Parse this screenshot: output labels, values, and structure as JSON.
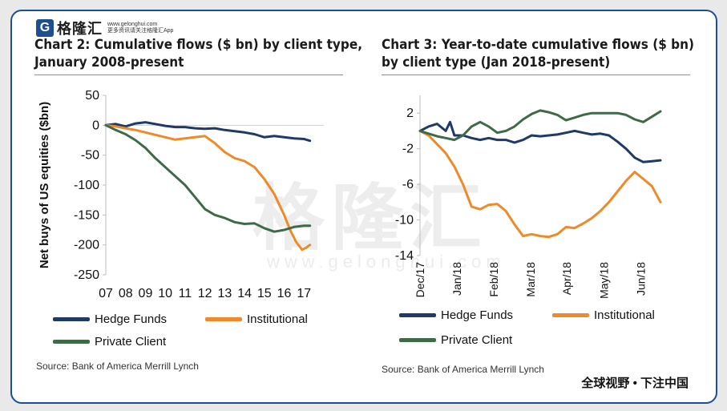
{
  "brand": {
    "badge": "G",
    "name": "格隆汇",
    "sub_line1": "www.gelonghui.com",
    "sub_line2": "更多资讯请关注格隆汇App"
  },
  "watermark": {
    "text": "格隆汇",
    "sub": "www.gelonghui.com"
  },
  "footer": {
    "slogan": "全球视野 • 下注中国"
  },
  "colors": {
    "hedge": "#1f3a66",
    "institutional": "#ee8a2a",
    "private": "#3f6a4a",
    "border": "#1d4f91"
  },
  "chart_data": [
    {
      "type": "line",
      "title_line1": "Chart 2: Cumulative flows ($ bn) by client type,",
      "title_line2": "January 2008-present",
      "ylabel": "Net buys of US equities ($bn)",
      "xlabel": "",
      "ylim": [
        -250,
        50
      ],
      "yticks": [
        "50",
        "0",
        "-50",
        "-100",
        "-150",
        "-200",
        "-250"
      ],
      "ytick_values": [
        50,
        0,
        -50,
        -100,
        -150,
        -200,
        -250
      ],
      "xlim": [
        7,
        18
      ],
      "xticks": [
        "07",
        "08",
        "09",
        "10",
        "11",
        "12",
        "13",
        "14",
        "15",
        "16",
        "17"
      ],
      "xtick_values": [
        7,
        8,
        9,
        10,
        11,
        12,
        13,
        14,
        15,
        16,
        17
      ],
      "series": [
        {
          "name": "Hedge Funds",
          "color_key": "hedge",
          "x": [
            7,
            7.5,
            8,
            8.5,
            9,
            9.5,
            10,
            10.5,
            11,
            11.5,
            12,
            12.5,
            13,
            13.5,
            14,
            14.5,
            15,
            15.5,
            16,
            16.5,
            17,
            17.3
          ],
          "y": [
            0,
            2,
            -2,
            3,
            5,
            2,
            -1,
            -3,
            -3,
            -5,
            -6,
            -5,
            -8,
            -10,
            -12,
            -15,
            -20,
            -18,
            -20,
            -22,
            -23,
            -26
          ]
        },
        {
          "name": "Institutional",
          "color_key": "institutional",
          "x": [
            7,
            7.5,
            8,
            8.5,
            9,
            9.5,
            10,
            10.5,
            11,
            11.5,
            12,
            12.5,
            13,
            13.5,
            14,
            14.5,
            15,
            15.5,
            16,
            16.3,
            16.6,
            16.9,
            17.1,
            17.3
          ],
          "y": [
            0,
            -2,
            -5,
            -8,
            -12,
            -16,
            -20,
            -24,
            -22,
            -20,
            -18,
            -30,
            -45,
            -55,
            -60,
            -70,
            -90,
            -115,
            -150,
            -175,
            -195,
            -208,
            -205,
            -200
          ]
        },
        {
          "name": "Private Client",
          "color_key": "private",
          "x": [
            7,
            7.5,
            8,
            8.5,
            9,
            9.5,
            10,
            10.5,
            11,
            11.5,
            12,
            12.5,
            13,
            13.5,
            14,
            14.5,
            15,
            15.5,
            16,
            16.5,
            17,
            17.3
          ],
          "y": [
            0,
            -8,
            -15,
            -25,
            -38,
            -55,
            -70,
            -85,
            -100,
            -120,
            -140,
            -150,
            -155,
            -162,
            -165,
            -164,
            -172,
            -178,
            -175,
            -170,
            -168,
            -168
          ]
        }
      ],
      "legend": [
        "Hedge Funds",
        "Institutional",
        "Private Client"
      ],
      "source": "Source:  Bank of America Merrill Lynch"
    },
    {
      "type": "line",
      "title_line1": "Chart 3: Year-to-date cumulative flows ($ bn)",
      "title_line2": "by client type (Jan 2018-present)",
      "ylabel": "",
      "xlabel": "",
      "ylim": [
        -14,
        4
      ],
      "yticks": [
        "2",
        "-2",
        "-6",
        "-10",
        "-14"
      ],
      "ytick_values": [
        2,
        -2,
        -6,
        -10,
        -14
      ],
      "xlim": [
        0,
        28
      ],
      "xticks": [
        "Dec/17",
        "Jan/18",
        "Feb/18",
        "Mar/18",
        "Apr/18",
        "May/18",
        "Jun/18"
      ],
      "xtick_values": [
        0,
        4.3,
        8.6,
        12.9,
        17.1,
        21.4,
        25.7
      ],
      "series": [
        {
          "name": "Hedge Funds",
          "color_key": "hedge",
          "x": [
            0,
            1,
            2,
            3,
            3.5,
            4,
            5,
            6,
            7,
            8,
            9,
            10,
            11,
            12,
            13,
            14,
            15,
            16,
            17,
            18,
            19,
            20,
            21,
            22,
            23,
            24,
            25,
            26,
            27,
            28
          ],
          "y": [
            0,
            0.5,
            0.8,
            0,
            1,
            -0.5,
            -0.5,
            -0.8,
            -1,
            -0.8,
            -1,
            -1,
            -1.3,
            -1,
            -0.5,
            -0.6,
            -0.5,
            -0.4,
            -0.2,
            0,
            -0.2,
            -0.4,
            -0.3,
            -0.5,
            -1.2,
            -2,
            -3,
            -3.5,
            -3.4,
            -3.3
          ]
        },
        {
          "name": "Institutional",
          "color_key": "institutional",
          "x": [
            0,
            1,
            2,
            3,
            4,
            5,
            6,
            7,
            8,
            9,
            10,
            11,
            12,
            13,
            14,
            15,
            16,
            17,
            18,
            19,
            20,
            21,
            22,
            23,
            24,
            25,
            26,
            27,
            28
          ],
          "y": [
            0,
            -0.5,
            -1.5,
            -2.5,
            -4,
            -6,
            -8.5,
            -8.8,
            -8.3,
            -8.2,
            -9,
            -10.5,
            -11.8,
            -11.6,
            -11.8,
            -11.9,
            -11.6,
            -10.8,
            -10.9,
            -10.4,
            -9.8,
            -9,
            -8,
            -6.8,
            -5.6,
            -4.6,
            -5.4,
            -6.2,
            -8
          ]
        },
        {
          "name": "Private Client",
          "color_key": "private",
          "x": [
            0,
            1,
            2,
            3,
            4,
            5,
            6,
            7,
            8,
            9,
            10,
            11,
            12,
            13,
            14,
            15,
            16,
            17,
            18,
            19,
            20,
            21,
            22,
            23,
            24,
            25,
            26,
            27,
            28
          ],
          "y": [
            0,
            -0.3,
            -0.6,
            -0.8,
            -1,
            -0.5,
            0.5,
            1,
            0.5,
            -0.2,
            0,
            0.5,
            1.3,
            1.9,
            2.3,
            2.1,
            1.8,
            1.2,
            1.5,
            1.8,
            2,
            2,
            2,
            2,
            1.8,
            1.3,
            1,
            1.6,
            2.2
          ]
        }
      ],
      "legend": [
        "Hedge Funds",
        "Institutional",
        "Private Client"
      ],
      "source": "Source:  Bank of America Merrill Lynch"
    }
  ]
}
